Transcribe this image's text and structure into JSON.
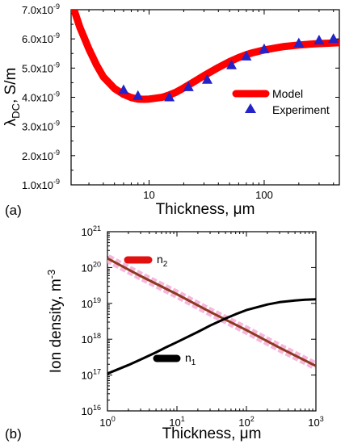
{
  "chart_data": [
    {
      "type": "line",
      "panel_label": "(a)",
      "xlabel": "Thickness, μm",
      "ylabel_main": "λ",
      "ylabel_sub": "DC",
      "ylabel_rest": ", S/m",
      "xscale": "log",
      "xlim": [
        2.1,
        450
      ],
      "ylim": [
        1e-09,
        7e-09
      ],
      "x_ticks": [
        10,
        100
      ],
      "y_ticks": [
        1e-09,
        2e-09,
        3e-09,
        4e-09,
        5e-09,
        6e-09,
        7e-09
      ],
      "y_tick_labels": [
        {
          "mant": "1.0x10",
          "exp": "-9"
        },
        {
          "mant": "2.0x10",
          "exp": "-9"
        },
        {
          "mant": "3.0x10",
          "exp": "-9"
        },
        {
          "mant": "4.0x10",
          "exp": "-9"
        },
        {
          "mant": "5.0x10",
          "exp": "-9"
        },
        {
          "mant": "6.0x10",
          "exp": "-9"
        },
        {
          "mant": "7.0x10",
          "exp": "-9"
        }
      ],
      "legend_position": "right",
      "series": [
        {
          "name": "Model",
          "style": "line",
          "color": "#ff0000",
          "x": [
            2.1,
            2.5,
            3,
            3.5,
            4,
            5,
            6,
            7,
            8,
            9,
            10,
            11,
            12,
            13,
            15,
            17,
            20,
            25,
            30,
            40,
            50,
            60,
            70,
            80,
            100,
            130,
            150,
            200,
            250,
            300,
            350,
            450
          ],
          "y": [
            7.3e-09,
            6.4e-09,
            5.65e-09,
            5.1e-09,
            4.7e-09,
            4.3e-09,
            4.1e-09,
            3.99e-09,
            3.94e-09,
            3.93e-09,
            3.94e-09,
            3.96e-09,
            3.98e-09,
            4e-09,
            4.08e-09,
            4.17e-09,
            4.32e-09,
            4.55e-09,
            4.74e-09,
            5.02e-09,
            5.22e-09,
            5.36e-09,
            5.46e-09,
            5.53e-09,
            5.62e-09,
            5.7e-09,
            5.74e-09,
            5.79e-09,
            5.82e-09,
            5.84e-09,
            5.85e-09,
            5.87e-09
          ]
        },
        {
          "name": "Experiment",
          "style": "marker",
          "color": "#2323c8",
          "x": [
            6,
            8,
            15,
            22,
            32,
            52,
            70,
            100,
            200,
            300,
            400
          ],
          "y": [
            4.25e-09,
            4.05e-09,
            4e-09,
            4.35e-09,
            4.6e-09,
            5.1e-09,
            5.4e-09,
            5.65e-09,
            5.85e-09,
            5.95e-09,
            6e-09
          ]
        }
      ]
    },
    {
      "type": "line",
      "panel_label": "(b)",
      "xlabel": "Thickness, μm",
      "ylabel": "Ion density, m",
      "ylabel_exp": "-3",
      "xscale": "log",
      "yscale": "log",
      "xlim": [
        1,
        1000
      ],
      "ylim": [
        1e+16,
        1e+21
      ],
      "x_ticks": [
        1,
        10,
        100,
        1000
      ],
      "x_tick_labels": [
        {
          "mant": "10",
          "exp": "0"
        },
        {
          "mant": "10",
          "exp": "1"
        },
        {
          "mant": "10",
          "exp": "2"
        },
        {
          "mant": "10",
          "exp": "3"
        }
      ],
      "y_ticks": [
        1e+16,
        1e+17,
        1e+18,
        1e+19,
        1e+20,
        1e+21
      ],
      "y_tick_labels": [
        {
          "mant": "10",
          "exp": "16"
        },
        {
          "mant": "10",
          "exp": "17"
        },
        {
          "mant": "10",
          "exp": "18"
        },
        {
          "mant": "10",
          "exp": "19"
        },
        {
          "mant": "10",
          "exp": "20"
        },
        {
          "mant": "10",
          "exp": "21"
        }
      ],
      "series": [
        {
          "name": "n",
          "name_sub": "2",
          "color": "#8b3a1e",
          "halo": "#f7b6dc",
          "x": [
            1,
            3,
            10,
            30,
            100,
            300,
            1000
          ],
          "y": [
            1.8e+20,
            5.8e+19,
            1.8e+19,
            5.8e+18,
            1.8e+18,
            5.8e+17,
            1.8e+17
          ]
        },
        {
          "name": "n",
          "name_sub": "1",
          "color": "#000000",
          "x": [
            1,
            2,
            3,
            5,
            7,
            10,
            20,
            30,
            50,
            70,
            100,
            200,
            300,
            500,
            700,
            1000
          ],
          "y": [
            1.1e+17,
            1.9e+17,
            2.7e+17,
            4.3e+17,
            6e+17,
            8.3e+17,
            1.6e+18,
            2.4e+18,
            3.8e+18,
            5e+18,
            6.5e+18,
            9.3e+18,
            1.08e+19,
            1.2e+19,
            1.26e+19,
            1.3e+19
          ]
        }
      ]
    }
  ]
}
